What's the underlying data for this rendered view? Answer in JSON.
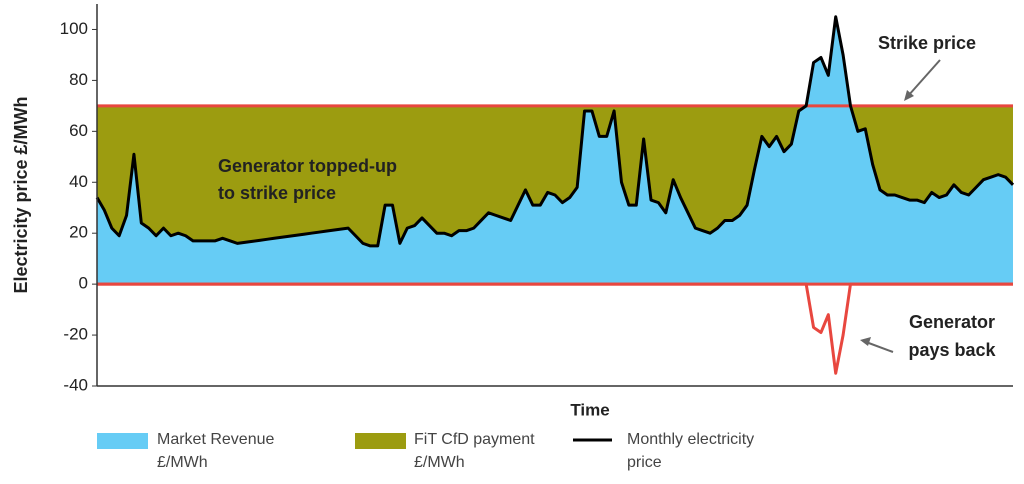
{
  "chart_data": {
    "type": "line",
    "y_label": "Electricity price £/MWh",
    "x_label": "Time",
    "ylim": [
      -40,
      110
    ],
    "yticks": [
      -40,
      -20,
      0,
      20,
      40,
      60,
      80,
      100
    ],
    "strike_price": 70,
    "colors": {
      "market": "#66ccf5",
      "cfd": "#9c9c10",
      "line": "#000000",
      "strike": "#e8473f"
    },
    "annotations": {
      "topped_up": [
        "Generator topped-up",
        "to strike price"
      ],
      "strike": "Strike price",
      "pays_back": [
        "Generator",
        "pays back"
      ]
    },
    "legend": [
      [
        "Market Revenue",
        "£/MWh"
      ],
      [
        "FiT CfD payment",
        "£/MWh"
      ],
      [
        "Monthly electricity",
        "price"
      ]
    ],
    "values": [
      34,
      29,
      22,
      19,
      27,
      51,
      24,
      22,
      19,
      22,
      19,
      20,
      19,
      17,
      17,
      17,
      17,
      18,
      17,
      16,
      16.4,
      16.8,
      17.2,
      17.6,
      18,
      18.4,
      18.8,
      19.2,
      19.6,
      20,
      20.4,
      20.8,
      21.2,
      21.6,
      22,
      19,
      16,
      15,
      15,
      31,
      31,
      16,
      22,
      23,
      26,
      23,
      20,
      20,
      19,
      21,
      21,
      22,
      25,
      28,
      27,
      26,
      25,
      31,
      37,
      31,
      31,
      36,
      35,
      32,
      34,
      38,
      68,
      68,
      58,
      58,
      68,
      40,
      31,
      31,
      57,
      33,
      32,
      28,
      41,
      34,
      28,
      22,
      21,
      20,
      22,
      25,
      25,
      27,
      31,
      45,
      58,
      54,
      58,
      52,
      55,
      68,
      70,
      87,
      89,
      82,
      105,
      90,
      70,
      60,
      61,
      47,
      37,
      35,
      35,
      34,
      33,
      33,
      32,
      36,
      34,
      35,
      39,
      36,
      35,
      38,
      41,
      42,
      43,
      42,
      39
    ]
  }
}
